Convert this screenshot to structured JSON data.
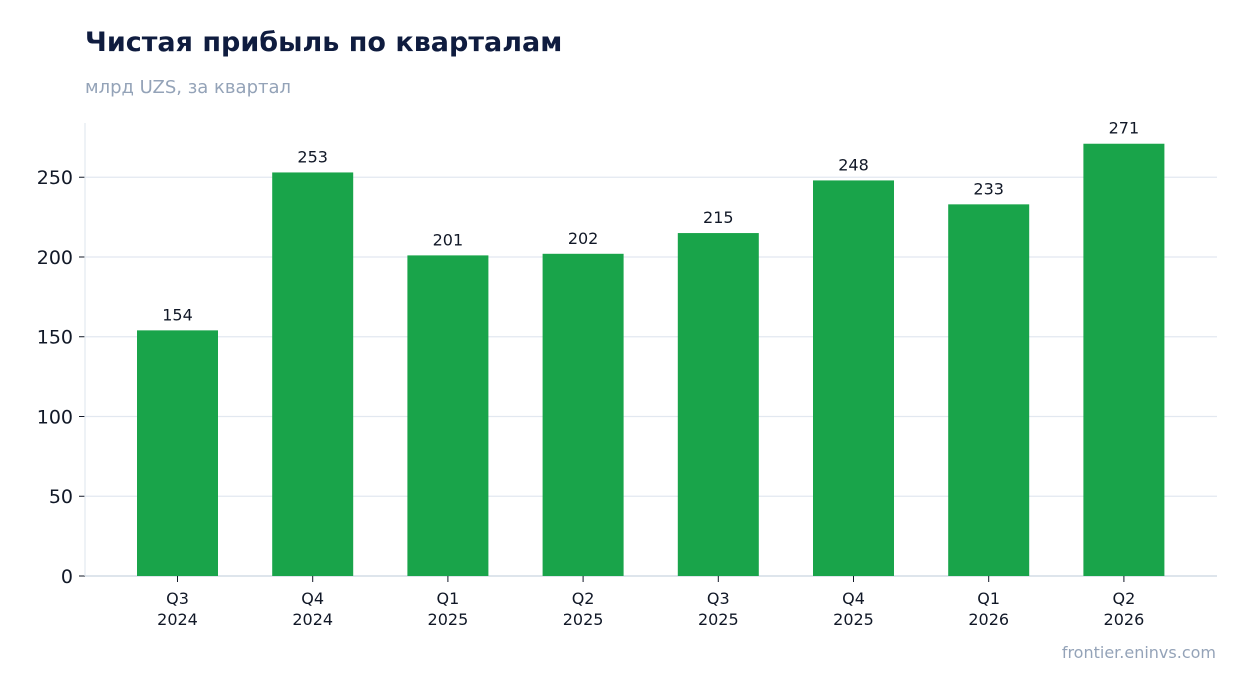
{
  "header": {
    "title": "Чистая прибыль по кварталам",
    "subtitle": "млрд UZS, за квартал"
  },
  "footer": {
    "source": "frontier.eninvs.com"
  },
  "colors": {
    "bar": "#19a44a",
    "grid": "#e2e8f0",
    "axis": "#cbd5e1",
    "title": "#0f1c3f",
    "muted": "#94a3b8",
    "text": "#111827"
  },
  "chart_data": {
    "type": "bar",
    "title": "Чистая прибыль по кварталам",
    "subtitle": "млрд UZS, за квартал",
    "categories": [
      [
        "Q3",
        "2024"
      ],
      [
        "Q4",
        "2024"
      ],
      [
        "Q1",
        "2025"
      ],
      [
        "Q2",
        "2025"
      ],
      [
        "Q3",
        "2025"
      ],
      [
        "Q4",
        "2025"
      ],
      [
        "Q1",
        "2026"
      ],
      [
        "Q2",
        "2026"
      ]
    ],
    "values": [
      154,
      253,
      201,
      202,
      215,
      248,
      233,
      271
    ],
    "value_labels": [
      "154",
      "253",
      "201",
      "202",
      "215",
      "248",
      "233",
      "271"
    ],
    "yticks": [
      0,
      50,
      100,
      150,
      200,
      250
    ],
    "ylim": [
      0,
      284
    ],
    "xlabel": "",
    "ylabel": "",
    "grid": "horizontal",
    "legend": "none"
  }
}
